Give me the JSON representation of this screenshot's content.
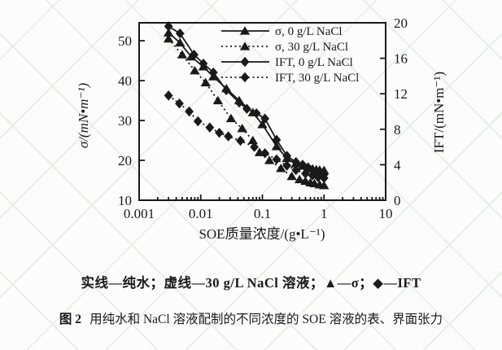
{
  "figure": {
    "legend_note": "实线—纯水；虚线—30 g/L NaCl 溶液；▲—σ；◆—IFT",
    "caption_label": "图 2",
    "caption_text": "用纯水和 NaCl 溶液配制的不同浓度的 SOE 溶液的表、界面张力"
  },
  "chart_data": {
    "type": "line",
    "x_axis": {
      "label": "SOE质量浓度/(g•L⁻¹)",
      "scale": "log",
      "range": [
        0.001,
        10
      ],
      "ticks": [
        0.001,
        0.01,
        0.1,
        1,
        10
      ],
      "tick_labels": [
        "0.001",
        "0.01",
        "0.1",
        "1",
        "10"
      ]
    },
    "y_left": {
      "label": "σ/(mN•m⁻¹)",
      "range": [
        10,
        54.5
      ],
      "ticks": [
        10,
        20,
        30,
        40,
        50
      ],
      "tick_labels": [
        "10",
        "20",
        "30",
        "40",
        "50"
      ]
    },
    "y_right": {
      "label": "IFT/(mN•m⁻¹)",
      "range": [
        0,
        20
      ],
      "ticks": [
        0,
        4,
        8,
        12,
        16,
        20
      ],
      "tick_labels": [
        "0",
        "4",
        "8",
        "12",
        "16",
        "20"
      ]
    },
    "grid": false,
    "legend_position": "top-right-inside",
    "colors": {
      "line": "#1a1a1a",
      "background": "#fcfcfb",
      "watermark": "#e7f0e5"
    },
    "series": [
      {
        "name": "σ, 0 g/L NaCl",
        "axis": "left",
        "marker": "triangle",
        "line": "solid",
        "points": [
          [
            0.003,
            52.0
          ],
          [
            0.0046,
            49.5
          ],
          [
            0.007,
            46.0
          ],
          [
            0.011,
            43.5
          ],
          [
            0.016,
            41.0
          ],
          [
            0.026,
            38.0
          ],
          [
            0.042,
            35.0
          ],
          [
            0.07,
            32.0
          ],
          [
            0.1,
            29.0
          ],
          [
            0.17,
            23.5
          ],
          [
            0.25,
            20.5
          ],
          [
            0.35,
            19.2
          ],
          [
            0.45,
            18.6
          ],
          [
            0.55,
            18.2
          ],
          [
            0.65,
            17.9
          ],
          [
            0.75,
            17.7
          ],
          [
            0.85,
            17.6
          ],
          [
            1.0,
            17.5
          ]
        ]
      },
      {
        "name": "σ, 30 g/L NaCl",
        "axis": "left",
        "marker": "triangle",
        "line": "dashed",
        "points": [
          [
            0.003,
            50.5
          ],
          [
            0.005,
            46.5
          ],
          [
            0.008,
            42.5
          ],
          [
            0.012,
            39.5
          ],
          [
            0.019,
            35.0
          ],
          [
            0.031,
            30.5
          ],
          [
            0.047,
            28.0
          ],
          [
            0.07,
            25.0
          ],
          [
            0.09,
            22.0
          ],
          [
            0.13,
            20.0
          ],
          [
            0.2,
            18.0
          ],
          [
            0.3,
            16.0
          ],
          [
            0.4,
            15.2
          ],
          [
            0.5,
            14.8
          ],
          [
            0.6,
            14.4
          ],
          [
            0.7,
            14.2
          ],
          [
            0.85,
            13.9
          ],
          [
            1.0,
            13.7
          ]
        ]
      },
      {
        "name": "IFT, 0 g/L NaCl",
        "axis": "right",
        "marker": "diamond",
        "line": "solid",
        "points": [
          [
            0.003,
            19.6
          ],
          [
            0.0046,
            18.8
          ],
          [
            0.0078,
            16.4
          ],
          [
            0.011,
            15.4
          ],
          [
            0.016,
            14.4
          ],
          [
            0.026,
            12.4
          ],
          [
            0.042,
            11.0
          ],
          [
            0.056,
            10.3
          ],
          [
            0.08,
            9.8
          ],
          [
            0.11,
            9.2
          ],
          [
            0.17,
            6.8
          ],
          [
            0.25,
            5.0
          ],
          [
            0.35,
            4.3
          ],
          [
            0.45,
            4.0
          ],
          [
            0.55,
            3.7
          ],
          [
            0.65,
            3.4
          ],
          [
            0.8,
            3.1
          ],
          [
            1.0,
            2.9
          ]
        ]
      },
      {
        "name": "IFT, 30 g/L NaCl",
        "axis": "right",
        "marker": "diamond",
        "line": "dashed",
        "points": [
          [
            0.003,
            11.8
          ],
          [
            0.0045,
            10.9
          ],
          [
            0.0065,
            10.0
          ],
          [
            0.009,
            8.9
          ],
          [
            0.014,
            8.2
          ],
          [
            0.02,
            7.6
          ],
          [
            0.028,
            7.2
          ],
          [
            0.044,
            6.7
          ],
          [
            0.074,
            6.0
          ],
          [
            0.11,
            5.3
          ],
          [
            0.17,
            4.6
          ],
          [
            0.25,
            3.9
          ],
          [
            0.35,
            3.4
          ],
          [
            0.5,
            3.0
          ],
          [
            0.65,
            2.8
          ],
          [
            0.8,
            2.6
          ],
          [
            1.0,
            2.5
          ]
        ]
      }
    ]
  }
}
